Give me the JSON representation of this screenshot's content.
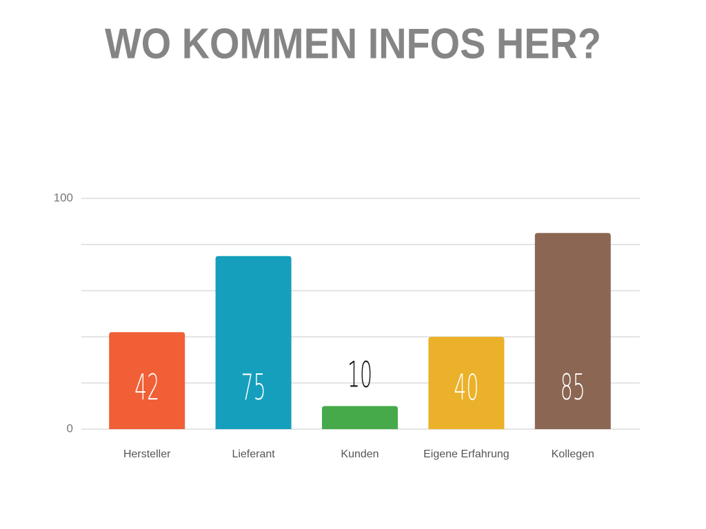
{
  "chart_data": {
    "type": "bar",
    "title": "WO KOMMEN INFOS HER?",
    "categories": [
      "Hersteller",
      "Lieferant",
      "Kunden",
      "Eigene Erfahrung",
      "Kollegen"
    ],
    "values": [
      42,
      75,
      10,
      40,
      85
    ],
    "colors": [
      "#f05f36",
      "#169fbd",
      "#46aa4a",
      "#ebb12a",
      "#8b6652"
    ],
    "ylim": [
      0,
      100
    ],
    "yticks": [
      0,
      100
    ],
    "ygrid": [
      0,
      20,
      40,
      60,
      80,
      100
    ],
    "grid": true
  }
}
